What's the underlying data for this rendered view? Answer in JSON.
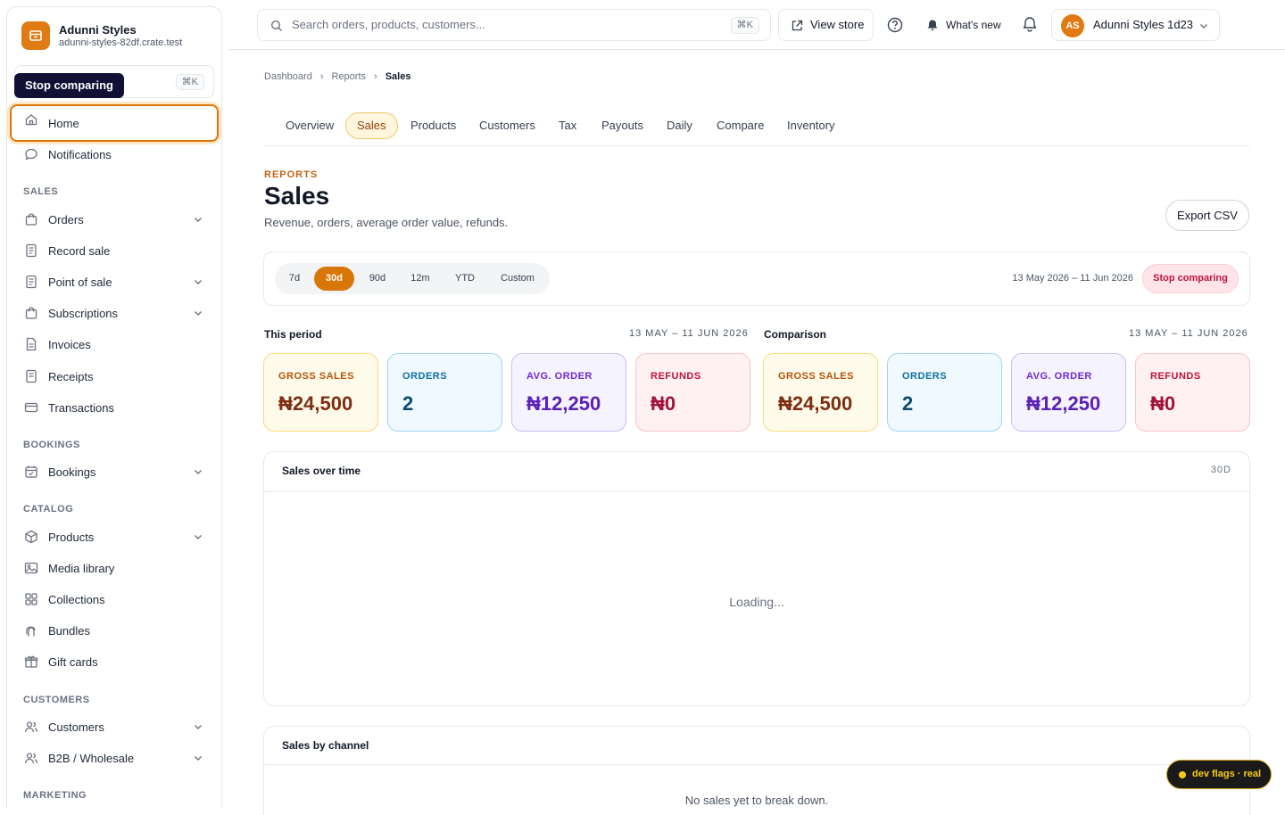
{
  "brand": {
    "name": "Adunni Styles",
    "domain": "adunni-styles-82df.crate.test",
    "accent": "#e07a12"
  },
  "sidebar": {
    "search_shortcut": "⌘K",
    "tooltip": "Stop comparing",
    "items": [
      {
        "label": "Home",
        "icon": "home-icon"
      },
      {
        "label": "Notifications",
        "icon": "chat-bubble-icon"
      },
      {
        "label": "Orders",
        "icon": "shopping-bag-icon"
      },
      {
        "label": "Record sale",
        "icon": "receipt-icon"
      },
      {
        "label": "Point of sale",
        "icon": "pos-icon"
      },
      {
        "label": "Subscriptions",
        "icon": "shopping-bag-icon"
      },
      {
        "label": "Invoices",
        "icon": "document-icon"
      },
      {
        "label": "Receipts",
        "icon": "receipt-icon"
      },
      {
        "label": "Transactions",
        "icon": "card-icon"
      },
      {
        "label": "Bookings",
        "icon": "calendar-icon"
      },
      {
        "label": "Products",
        "icon": "cube-icon"
      },
      {
        "label": "Media library",
        "icon": "image-icon"
      },
      {
        "label": "Collections",
        "icon": "grid-icon"
      },
      {
        "label": "Bundles",
        "icon": "bundle-icon"
      },
      {
        "label": "Gift cards",
        "icon": "gift-icon"
      },
      {
        "label": "Customers",
        "icon": "users-icon"
      },
      {
        "label": "B2B / Wholesale",
        "icon": "users-icon"
      }
    ],
    "sections": {
      "sales": "SALES",
      "bookings": "BOOKINGS",
      "catalog": "CATALOG",
      "customers": "CUSTOMERS",
      "marketing": "MARKETING"
    }
  },
  "topbar": {
    "search_placeholder": "Search orders, products, customers...",
    "search_shortcut": "⌘K",
    "view_store": "View store",
    "whats_new": "What's new",
    "account_initials": "AS",
    "account_name": "Adunni Styles 1d23"
  },
  "breadcrumb": [
    "Dashboard",
    "Reports",
    "Sales"
  ],
  "tabs": [
    "Overview",
    "Sales",
    "Products",
    "Customers",
    "Tax",
    "Payouts",
    "Daily",
    "Compare",
    "Inventory"
  ],
  "header": {
    "eyebrow": "REPORTS",
    "title": "Sales",
    "subtitle": "Revenue, orders, average order value, refunds.",
    "export": "Export CSV"
  },
  "range": {
    "options": [
      "7d",
      "30d",
      "90d",
      "12m",
      "YTD",
      "Custom"
    ],
    "selected": "30d",
    "date_text": "13 May 2026 – 11 Jun 2026",
    "stop_comparing": "Stop comparing"
  },
  "this_period": {
    "label": "This period",
    "date": "13 MAY – 11 JUN 2026",
    "metrics": [
      {
        "label": "GROSS SALES",
        "value": "₦24,500"
      },
      {
        "label": "ORDERS",
        "value": "2"
      },
      {
        "label": "AVG. ORDER",
        "value": "₦12,250"
      },
      {
        "label": "REFUNDS",
        "value": "₦0"
      }
    ]
  },
  "comparison": {
    "label": "Comparison",
    "date": "13 MAY – 11 JUN 2026",
    "metrics": [
      {
        "label": "GROSS SALES",
        "value": "₦24,500"
      },
      {
        "label": "ORDERS",
        "value": "2"
      },
      {
        "label": "AVG. ORDER",
        "value": "₦12,250"
      },
      {
        "label": "REFUNDS",
        "value": "₦0"
      }
    ]
  },
  "sales_over_time": {
    "title": "Sales over time",
    "range": "30D",
    "status": "Loading..."
  },
  "sales_by_channel": {
    "title": "Sales by channel",
    "empty": "No sales yet to break down."
  },
  "dev_flags": "dev flags · real"
}
